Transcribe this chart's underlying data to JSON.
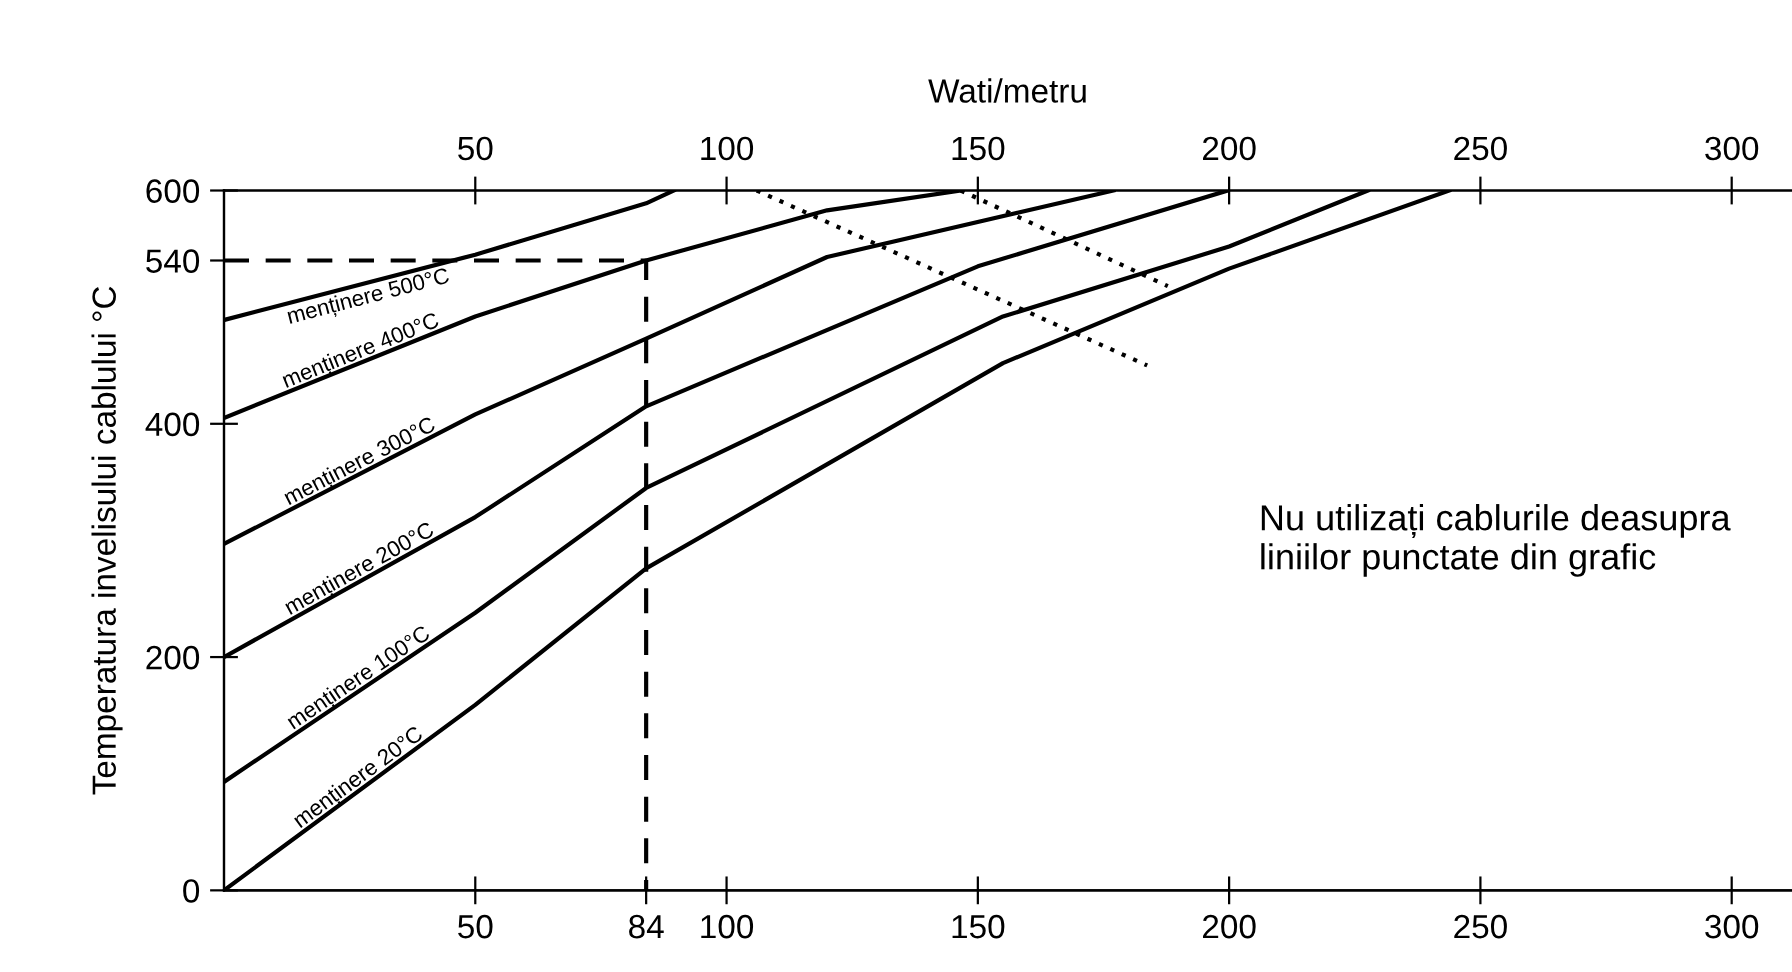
{
  "chart_data": {
    "type": "line",
    "ylabel": "Temperatura invelisului cablului °C",
    "x2label": "Wati/metru",
    "xlim": [
      0,
      312
    ],
    "ylim": [
      0,
      600
    ],
    "xticks": [
      50,
      84,
      100,
      150,
      200,
      250,
      300
    ],
    "x2lim": [
      0,
      312
    ],
    "x2ticks": [
      50,
      100,
      150,
      200,
      250,
      300
    ],
    "yticks": [
      0,
      200,
      400,
      540,
      600
    ],
    "grid": false,
    "legend": false,
    "line_style": "solid",
    "marker": "none",
    "series": [
      {
        "name": "menținere 500°C",
        "color": "#000000",
        "x": [
          0,
          50,
          84,
          89.5
        ],
        "values": [
          489,
          545,
          589,
          600
        ]
      },
      {
        "name": "menținere 400°C",
        "color": "#000000",
        "x": [
          0,
          50,
          84,
          120,
          146.6
        ],
        "values": [
          405,
          492,
          540,
          583,
          600
        ]
      },
      {
        "name": "menținere 300°C",
        "color": "#000000",
        "x": [
          0,
          50,
          84,
          120,
          177
        ],
        "values": [
          297,
          408,
          473,
          543,
          600
        ]
      },
      {
        "name": "menținere 200°C",
        "color": "#000000",
        "x": [
          0,
          50,
          84,
          150,
          199.7
        ],
        "values": [
          200,
          320,
          415,
          535,
          600
        ]
      },
      {
        "name": "menținere 100°C",
        "color": "#000000",
        "x": [
          0,
          50,
          84,
          155,
          200,
          227.6
        ],
        "values": [
          93,
          238,
          345,
          492,
          552,
          600
        ]
      },
      {
        "name": "menținere 20°C",
        "color": "#000000",
        "x": [
          0,
          50,
          84,
          155,
          200,
          243.8
        ],
        "values": [
          0,
          159,
          276,
          452,
          533,
          600
        ]
      },
      {
        "color": "#000000",
        "line_style": "dotted",
        "x": [
          106,
          183.7
        ],
        "values": [
          600,
          450
        ]
      },
      {
        "color": "#000000",
        "line_style": "dotted",
        "x": [
          146.6,
          187.8
        ],
        "values": [
          600,
          518
        ]
      },
      {
        "color": "#000000",
        "line_style": "dashed",
        "x": [
          0,
          84,
          84
        ],
        "values": [
          540,
          540,
          0
        ]
      }
    ],
    "annotations": [
      "Nu utilizați cablurile deasupra liniilor punctate din grafic"
    ]
  }
}
